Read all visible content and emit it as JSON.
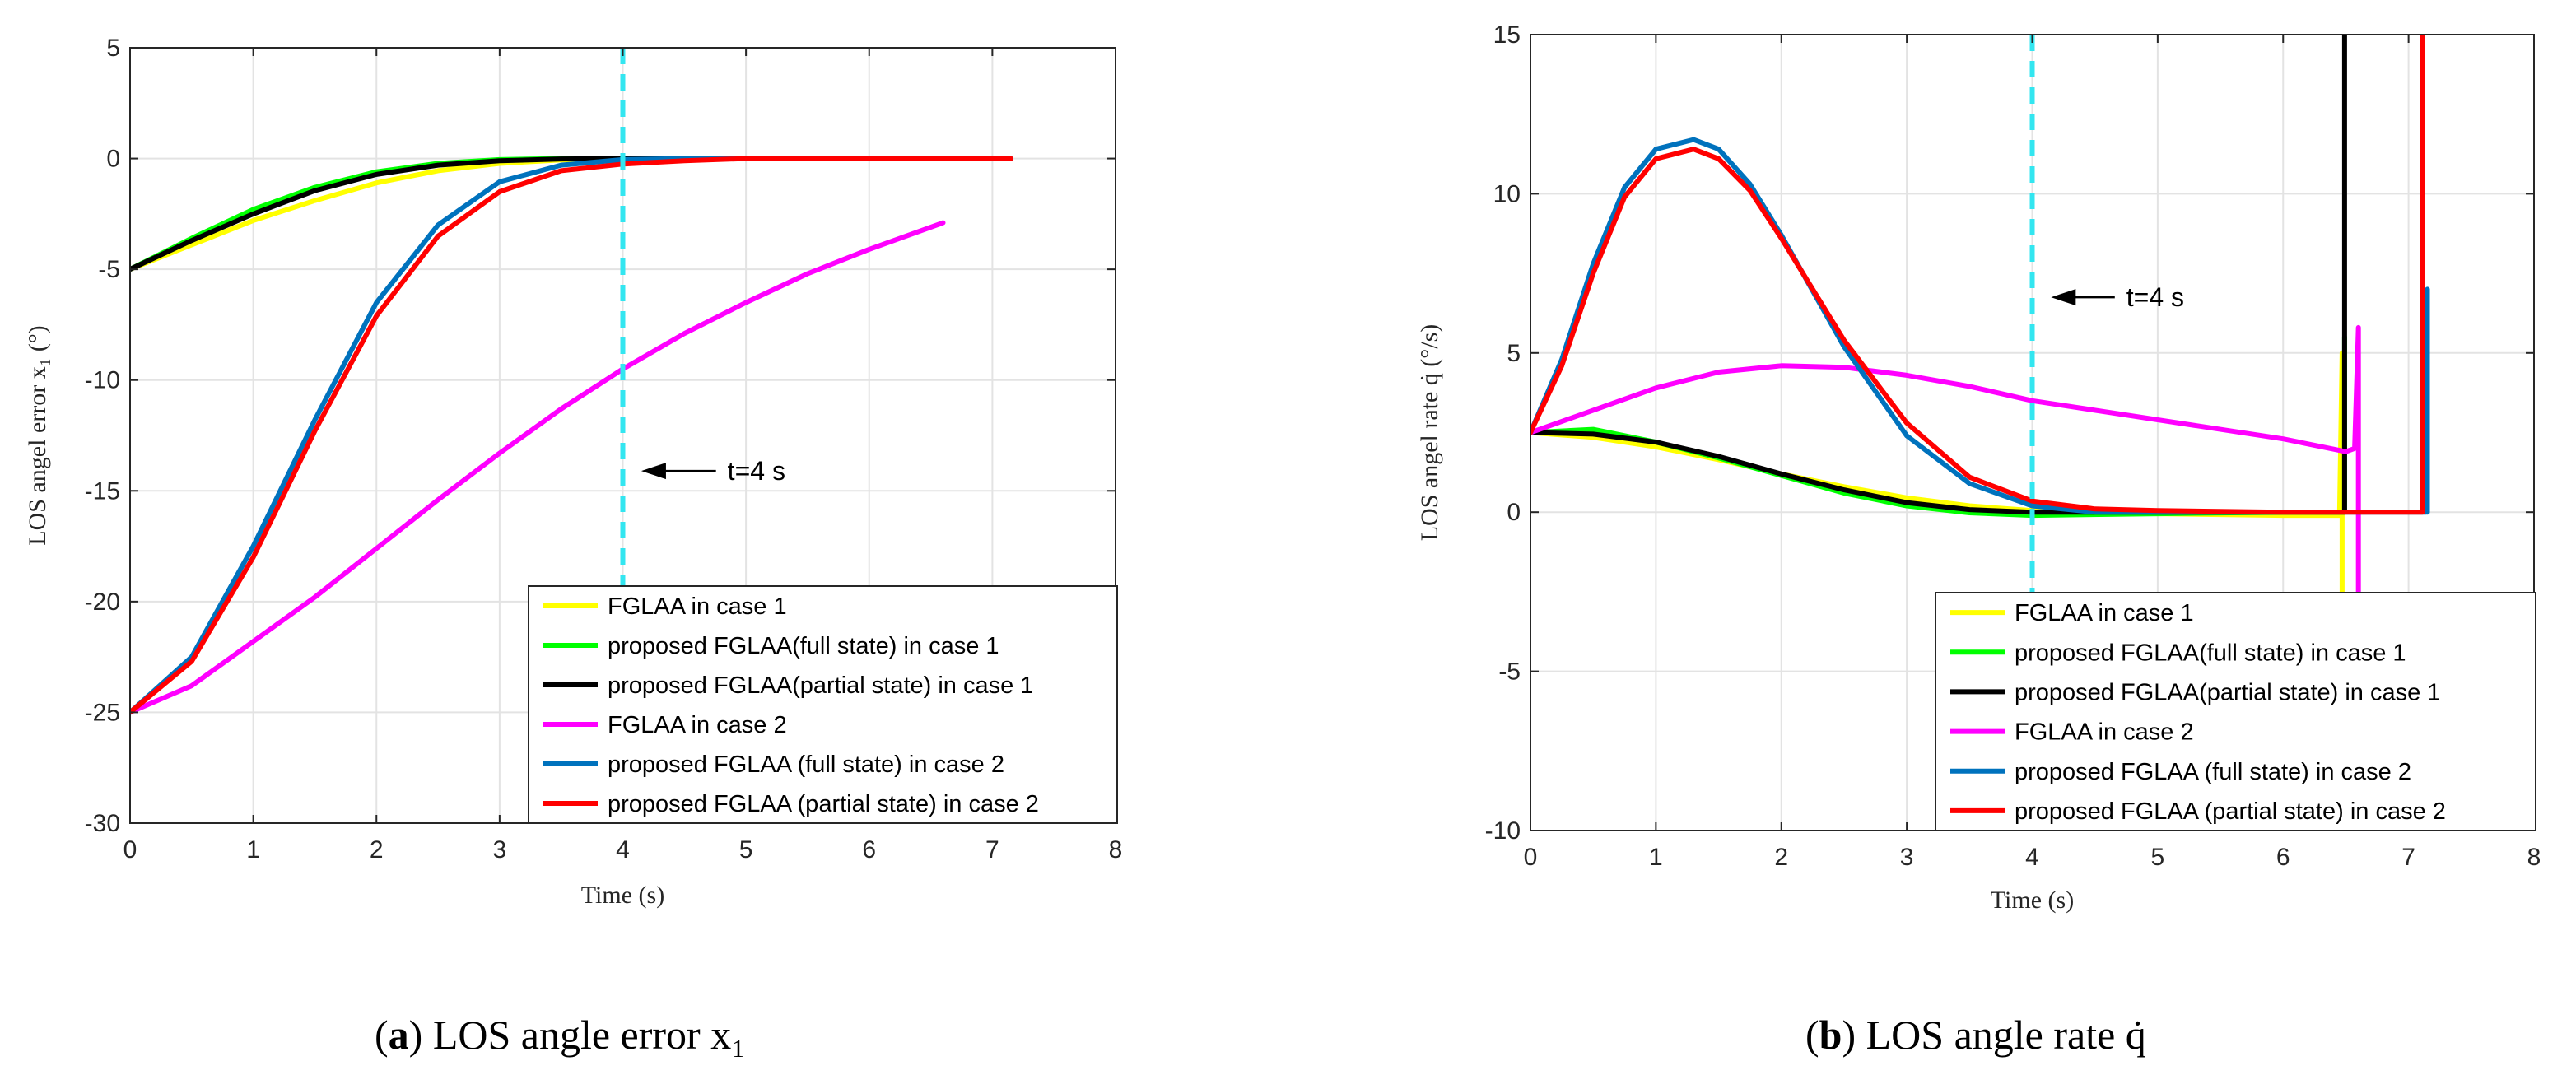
{
  "chart_data": [
    {
      "type": "line",
      "panel_id": "a",
      "ylabel": "LOS angel error x₁ (°)",
      "xlabel": "Time (s)",
      "xlim": [
        0,
        8
      ],
      "ylim": [
        -30,
        5
      ],
      "xticks": [
        0,
        1,
        2,
        3,
        4,
        5,
        6,
        7,
        8
      ],
      "yticks": [
        5,
        0,
        -5,
        -10,
        -15,
        -20,
        -25,
        -30
      ],
      "grid": true,
      "legend_position": "bottom-right",
      "vline": {
        "x": 4,
        "color": "#33E6F0",
        "style": "dashed"
      },
      "annotation": {
        "text": "t=4 s",
        "x": 4.85,
        "y": -14.1
      },
      "series": [
        {
          "name": "FGLAA in case 1",
          "color": "#FFFF00",
          "x": [
            0,
            0.5,
            1,
            1.5,
            2,
            2.5,
            3,
            3.5,
            4,
            5,
            6,
            7.15
          ],
          "y": [
            -5,
            -3.9,
            -2.8,
            -1.9,
            -1.1,
            -0.55,
            -0.22,
            -0.06,
            0,
            0,
            0,
            0
          ]
        },
        {
          "name": "proposed FGLAA(full state) in case 1",
          "color": "#00FF00",
          "x": [
            0,
            0.5,
            1,
            1.5,
            2,
            2.5,
            3,
            3.5,
            4,
            5,
            6,
            7.15
          ],
          "y": [
            -5,
            -3.6,
            -2.3,
            -1.3,
            -0.6,
            -0.22,
            -0.05,
            0,
            0,
            0,
            0,
            0
          ]
        },
        {
          "name": "proposed FGLAA(partial state) in case 1",
          "color": "#000000",
          "x": [
            0,
            0.5,
            1,
            1.5,
            2,
            2.5,
            3,
            3.5,
            4,
            5,
            6,
            7.15
          ],
          "y": [
            -5,
            -3.7,
            -2.5,
            -1.45,
            -0.72,
            -0.3,
            -0.1,
            -0.02,
            0,
            0,
            0,
            0
          ]
        },
        {
          "name": "FGLAA in case 2",
          "color": "#FF00FF",
          "x": [
            0,
            0.5,
            1,
            1.5,
            2,
            2.5,
            3,
            3.5,
            4,
            4.5,
            5,
            5.5,
            6,
            6.6
          ],
          "y": [
            -25,
            -23.8,
            -21.8,
            -19.8,
            -17.6,
            -15.4,
            -13.3,
            -11.3,
            -9.5,
            -7.9,
            -6.5,
            -5.2,
            -4.1,
            -2.9
          ]
        },
        {
          "name": "proposed FGLAA (full state) in case 2",
          "color": "#0072BD",
          "x": [
            0,
            0.5,
            1,
            1.5,
            2,
            2.5,
            3,
            3.5,
            4,
            4.5,
            5,
            6,
            7.15
          ],
          "y": [
            -25,
            -22.5,
            -17.5,
            -11.8,
            -6.5,
            -3.0,
            -1.05,
            -0.3,
            -0.05,
            0,
            0,
            0,
            0
          ]
        },
        {
          "name": "proposed FGLAA (partial state) in case 2",
          "color": "#FF0000",
          "x": [
            0,
            0.5,
            1,
            1.5,
            2,
            2.5,
            3,
            3.5,
            4,
            4.5,
            5,
            6,
            7.15
          ],
          "y": [
            -25,
            -22.7,
            -18.0,
            -12.3,
            -7.1,
            -3.5,
            -1.5,
            -0.55,
            -0.25,
            -0.1,
            0,
            0,
            0
          ]
        }
      ]
    },
    {
      "type": "line",
      "panel_id": "b",
      "ylabel": "LOS angel rate q̇ (°/s)",
      "xlabel": "Time (s)",
      "xlim": [
        0,
        8
      ],
      "ylim": [
        -10,
        15
      ],
      "xticks": [
        0,
        1,
        2,
        3,
        4,
        5,
        6,
        7,
        8
      ],
      "yticks": [
        15,
        10,
        5,
        0,
        -5,
        -10
      ],
      "grid": true,
      "legend_position": "bottom-right",
      "vline": {
        "x": 4,
        "color": "#33E6F0",
        "style": "dashed"
      },
      "annotation": {
        "text": "t=4 s",
        "x": 4.75,
        "y": 6.75
      },
      "series": [
        {
          "name": "FGLAA in case 1",
          "color": "#FFFF00",
          "x": [
            0,
            0.5,
            1,
            1.5,
            2,
            2.5,
            3,
            3.5,
            4,
            5,
            6,
            6.45,
            6.47,
            6.47
          ],
          "y": [
            2.5,
            2.35,
            2.05,
            1.65,
            1.2,
            0.8,
            0.45,
            0.2,
            0.05,
            -0.05,
            -0.1,
            -0.1,
            5,
            -2.5
          ]
        },
        {
          "name": "proposed FGLAA(full state) in case 1",
          "color": "#00FF00",
          "x": [
            0,
            0.5,
            1,
            1.5,
            2,
            2.5,
            3,
            3.5,
            4,
            5,
            6,
            6.49,
            6.49
          ],
          "y": [
            2.5,
            2.6,
            2.2,
            1.7,
            1.15,
            0.6,
            0.2,
            -0.02,
            -0.1,
            -0.05,
            0,
            0,
            5.5
          ]
        },
        {
          "name": "proposed FGLAA(partial state) in case 1",
          "color": "#000000",
          "x": [
            0,
            0.5,
            1,
            1.5,
            2,
            2.5,
            3,
            3.5,
            4,
            5,
            6,
            6.48,
            6.49,
            6.49
          ],
          "y": [
            2.5,
            2.45,
            2.2,
            1.75,
            1.2,
            0.7,
            0.3,
            0.08,
            0,
            0,
            0,
            0,
            0,
            15
          ]
        },
        {
          "name": "FGLAA in case 2",
          "color": "#FF00FF",
          "x": [
            0,
            0.5,
            1,
            1.5,
            2,
            2.5,
            3,
            3.5,
            4,
            5,
            6,
            6.5,
            6.57,
            6.6,
            6.6
          ],
          "y": [
            2.5,
            3.2,
            3.9,
            4.4,
            4.6,
            4.55,
            4.3,
            3.95,
            3.5,
            2.9,
            2.3,
            1.9,
            2.0,
            5.8,
            -2.5
          ]
        },
        {
          "name": "proposed FGLAA (full state) in case 2",
          "color": "#0072BD",
          "x": [
            0,
            0.25,
            0.5,
            0.75,
            1,
            1.3,
            1.5,
            1.75,
            2,
            2.5,
            3,
            3.5,
            4,
            4.5,
            5,
            6,
            7.14,
            7.15,
            7.15
          ],
          "y": [
            2.5,
            4.8,
            7.8,
            10.2,
            11.4,
            11.7,
            11.4,
            10.3,
            8.7,
            5.2,
            2.4,
            0.9,
            0.2,
            0,
            0,
            0,
            0,
            7.0,
            0
          ]
        },
        {
          "name": "proposed FGLAA (partial state) in case 2",
          "color": "#FF0000",
          "x": [
            0,
            0.25,
            0.5,
            0.75,
            1,
            1.3,
            1.5,
            1.75,
            2,
            2.5,
            3,
            3.5,
            4,
            4.5,
            5,
            6,
            7.1,
            7.11,
            7.11
          ],
          "y": [
            2.5,
            4.6,
            7.5,
            9.9,
            11.1,
            11.4,
            11.1,
            10.1,
            8.6,
            5.4,
            2.8,
            1.1,
            0.35,
            0.1,
            0.05,
            0,
            0,
            0,
            15
          ]
        }
      ]
    }
  ],
  "captions": [
    {
      "label": "a",
      "text": "LOS angle error x₁"
    },
    {
      "label": "b",
      "text": "LOS angle rate q̇"
    }
  ]
}
